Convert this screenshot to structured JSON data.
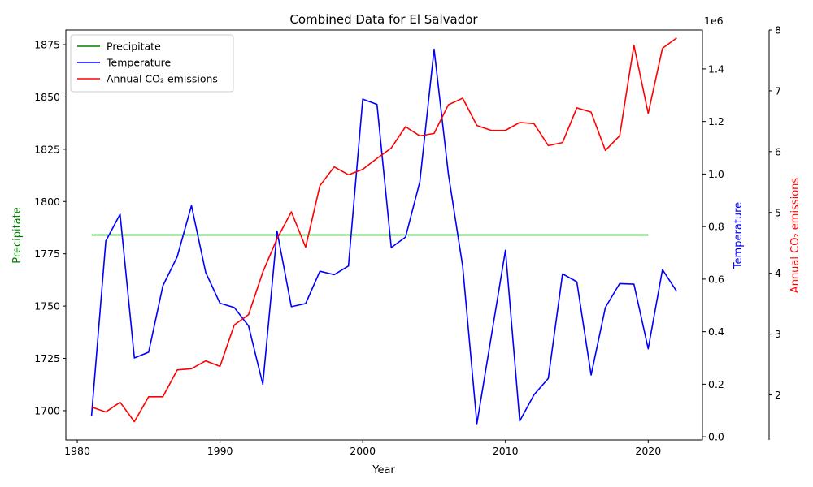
{
  "chart_data": {
    "type": "line",
    "title": "Combined Data for El Salvador",
    "xlabel": "Year",
    "x_ticks": [
      1980,
      1990,
      2000,
      2010,
      2020
    ],
    "xlim": [
      1979.2,
      2023.8
    ],
    "axes": {
      "left": {
        "label": "Precipitate",
        "color": "#008000",
        "ylim": [
          1686,
          1882
        ],
        "ticks": [
          "1700",
          "1725",
          "1750",
          "1775",
          "1800",
          "1825",
          "1850",
          "1875"
        ]
      },
      "right": {
        "label": "Temperature",
        "color": "#0000ff",
        "ylim": [
          -12000,
          1548000
        ],
        "ticks": [
          "0.0",
          "0.2",
          "0.4",
          "0.6",
          "0.8",
          "1.0",
          "1.2",
          "1.4"
        ],
        "offset_text": "1e6"
      },
      "right2": {
        "label": "Annual CO₂ emissions",
        "color": "#ff0000",
        "ylim": [
          1.26,
          8.0
        ],
        "ticks": [
          "2",
          "3",
          "4",
          "5",
          "6",
          "7",
          "8"
        ]
      }
    },
    "legend": {
      "placement": "upper-left"
    },
    "series": [
      {
        "name": "Precipitate",
        "color": "#008000",
        "axis": "left",
        "x": [
          1981,
          2020
        ],
        "y": [
          1784,
          1784
        ]
      },
      {
        "name": "Temperature",
        "color": "#0000ff",
        "axis": "right",
        "x": [
          1981,
          1982,
          1983,
          1984,
          1985,
          1986,
          1987,
          1988,
          1989,
          1990,
          1991,
          1992,
          1993,
          1994,
          1995,
          1996,
          1997,
          1998,
          1999,
          2000,
          2001,
          2002,
          2003,
          2004,
          2005,
          2006,
          2007,
          2008,
          2009,
          2010,
          2011,
          2012,
          2013,
          2014,
          2015,
          2016,
          2017,
          2018,
          2019,
          2020,
          2021,
          2022
        ],
        "y": [
          80000,
          745000,
          847000,
          300000,
          322000,
          575000,
          685000,
          880000,
          625000,
          508000,
          492000,
          422000,
          200000,
          782000,
          495000,
          507000,
          630000,
          617000,
          650000,
          1285000,
          1265000,
          720000,
          760000,
          970000,
          1475000,
          1000000,
          650000,
          50000,
          380000,
          710000,
          60000,
          160000,
          222000,
          620000,
          590000,
          235000,
          492000,
          583000,
          581000,
          335000,
          636000,
          553000
        ]
      },
      {
        "name": "Annual CO₂ emissions",
        "color": "#ff0000",
        "axis": "right2",
        "x": [
          1981,
          1982,
          1983,
          1984,
          1985,
          1986,
          1987,
          1988,
          1989,
          1990,
          1991,
          1992,
          1993,
          1994,
          1995,
          1996,
          1997,
          1998,
          1999,
          2000,
          2001,
          2002,
          2003,
          2004,
          2005,
          2006,
          2007,
          2008,
          2009,
          2010,
          2011,
          2012,
          2013,
          2014,
          2015,
          2016,
          2017,
          2018,
          2019,
          2020,
          2021,
          2022
        ],
        "y": [
          1.8,
          1.72,
          1.88,
          1.56,
          1.97,
          1.97,
          2.41,
          2.43,
          2.56,
          2.47,
          3.15,
          3.32,
          4.02,
          4.57,
          5.01,
          4.43,
          5.44,
          5.75,
          5.62,
          5.71,
          5.89,
          6.06,
          6.41,
          6.26,
          6.3,
          6.77,
          6.88,
          6.43,
          6.35,
          6.35,
          6.48,
          6.46,
          6.1,
          6.15,
          6.72,
          6.65,
          6.02,
          6.26,
          7.75,
          6.63,
          7.7,
          7.87
        ]
      }
    ]
  }
}
